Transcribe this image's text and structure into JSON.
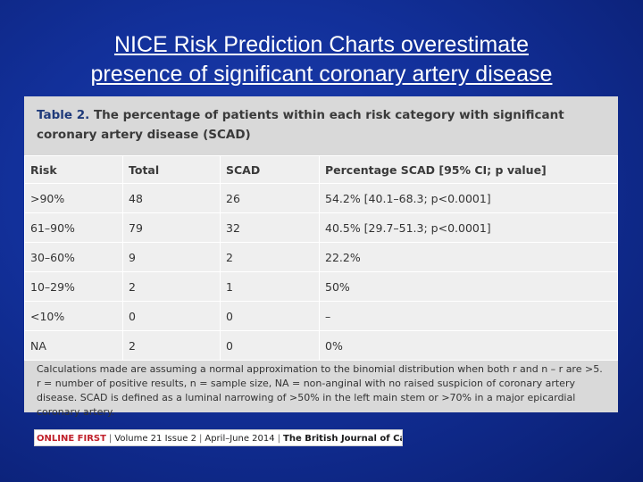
{
  "slide": {
    "title_line1": "NICE Risk Prediction Charts overestimate",
    "title_line2": "presence of significant coronary artery disease"
  },
  "table": {
    "caption_label": "Table 2.",
    "caption_text": " The percentage of patients within each risk category with significant coronary artery disease (SCAD)",
    "headers": [
      "Risk",
      "Total",
      "SCAD",
      "Percentage SCAD [95% CI; p value]"
    ],
    "rows": [
      [
        ">90%",
        "48",
        "26",
        "54.2% [40.1–68.3; p<0.0001]"
      ],
      [
        "61–90%",
        "79",
        "32",
        "40.5% [29.7–51.3; p<0.0001]"
      ],
      [
        "30–60%",
        "9",
        "2",
        "22.2%"
      ],
      [
        "10–29%",
        "2",
        "1",
        "50%"
      ],
      [
        "<10%",
        "0",
        "0",
        "–"
      ],
      [
        "NA",
        "2",
        "0",
        "0%"
      ]
    ],
    "footnote": "Calculations made are assuming a normal approximation to the binomial distribution when both r and n – r are >5. r = number of positive results, n = sample size, NA = non-anginal with no raised suspicion of coronary artery disease. SCAD is defined as a luminal narrowing of >50% in the left main stem or >70% in a major epicardial coronary artery."
  },
  "banner": {
    "brand": "ONLINE FIRST",
    "issue": "Volume 21 Issue 2",
    "date": "April–June 2014",
    "journal": "The British Journal of Cardiology"
  },
  "colors": {
    "background": "#12309a",
    "table_label": "#1f3a7a",
    "brand_red": "#c0202a"
  }
}
